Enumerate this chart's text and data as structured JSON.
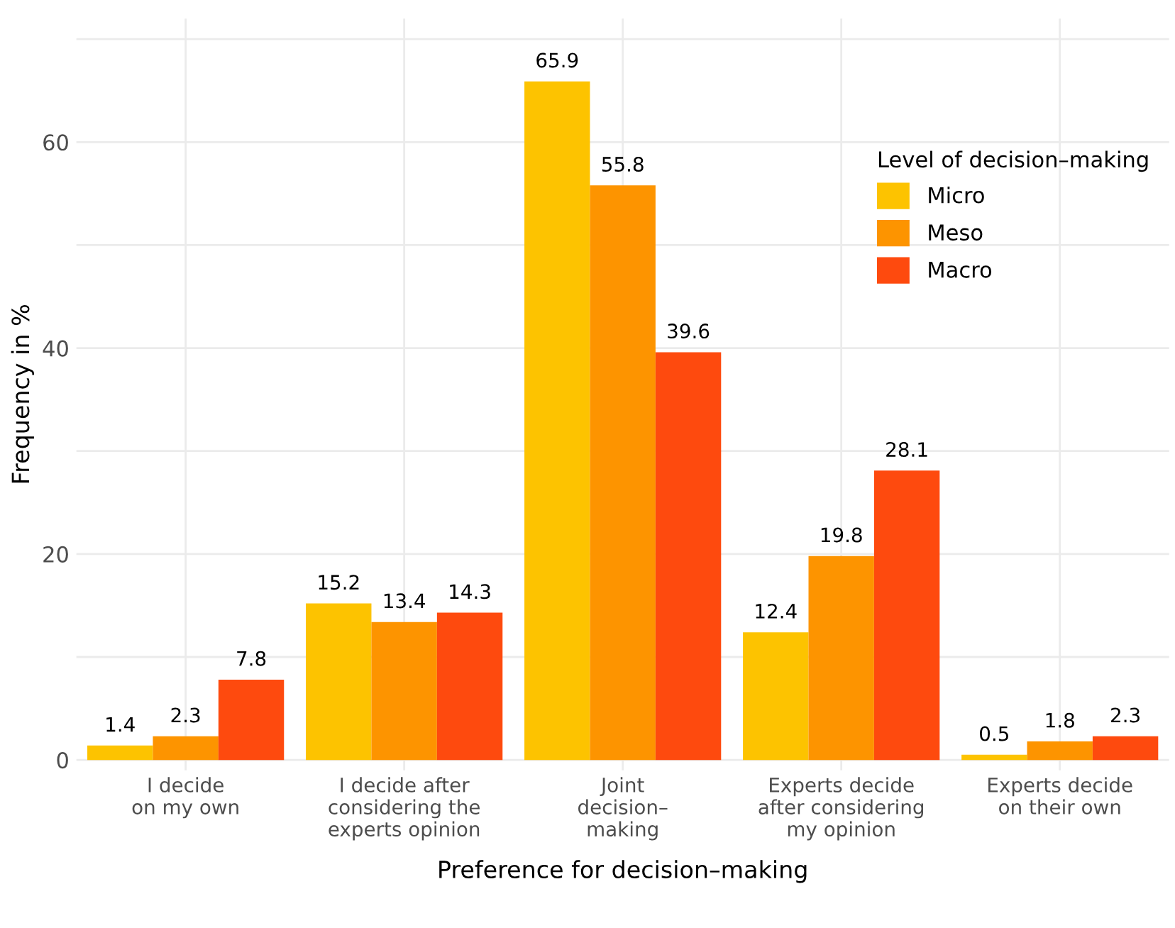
{
  "chart_data": {
    "type": "bar",
    "xlabel": "Preference for decision–making",
    "ylabel": "Frequency in %",
    "legend_title": "Level of decision–making",
    "categories": [
      "I decide\non my own",
      "I decide after\nconsidering the\nexperts opinion",
      "Joint\ndecision–\nmaking",
      "Experts decide\nafter considering\nmy opinion",
      "Experts decide\non their own"
    ],
    "series": [
      {
        "name": "Micro",
        "color": "#fdc300",
        "values": [
          1.4,
          15.2,
          65.9,
          12.4,
          0.5
        ]
      },
      {
        "name": "Meso",
        "color": "#fd9400",
        "values": [
          2.3,
          13.4,
          55.8,
          19.8,
          1.8
        ]
      },
      {
        "name": "Macro",
        "color": "#fe4a0e",
        "values": [
          7.8,
          14.3,
          39.6,
          28.1,
          2.3
        ]
      }
    ],
    "data_labels": true,
    "ylim": [
      -1,
      72
    ],
    "yticks": [
      0,
      {
        "value": 10,
        "label": null
      },
      20,
      {
        "value": 30,
        "label": null
      },
      40,
      {
        "value": 50,
        "label": null
      },
      60,
      {
        "value": 70,
        "label": null
      }
    ],
    "grid": true,
    "legend": "top right"
  }
}
